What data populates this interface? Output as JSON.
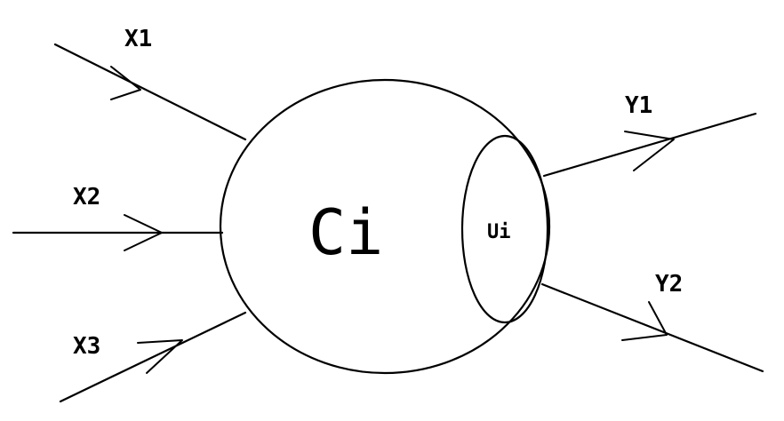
{
  "diagram": {
    "center_node": "Ci",
    "inner_node": "Ui",
    "inputs": [
      "X1",
      "X2",
      "X3"
    ],
    "outputs": [
      "Y1",
      "Y2"
    ]
  }
}
